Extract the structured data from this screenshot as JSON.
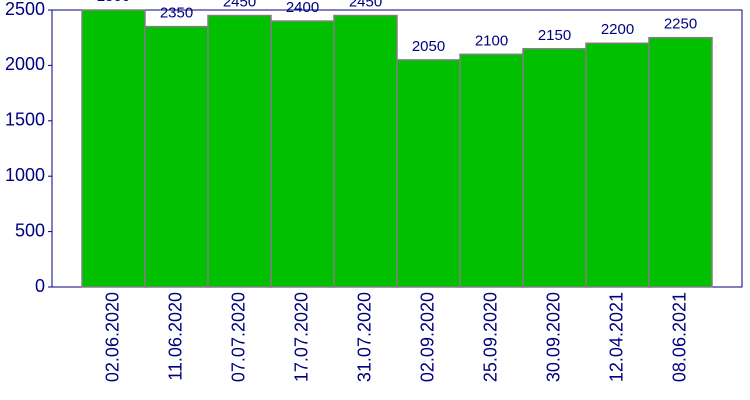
{
  "chart_data": {
    "type": "bar",
    "categories": [
      "02.06.2020",
      "11.06.2020",
      "07.07.2020",
      "17.07.2020",
      "31.07.2020",
      "02.09.2020",
      "25.09.2020",
      "30.09.2020",
      "12.04.2021",
      "08.06.2021"
    ],
    "values": [
      2500,
      2350,
      2450,
      2400,
      2450,
      2050,
      2100,
      2150,
      2200,
      2250
    ],
    "color": "#00c000",
    "ylim": [
      0,
      2500
    ],
    "yticks": [
      0,
      500,
      1000,
      1500,
      2000,
      2500
    ]
  }
}
